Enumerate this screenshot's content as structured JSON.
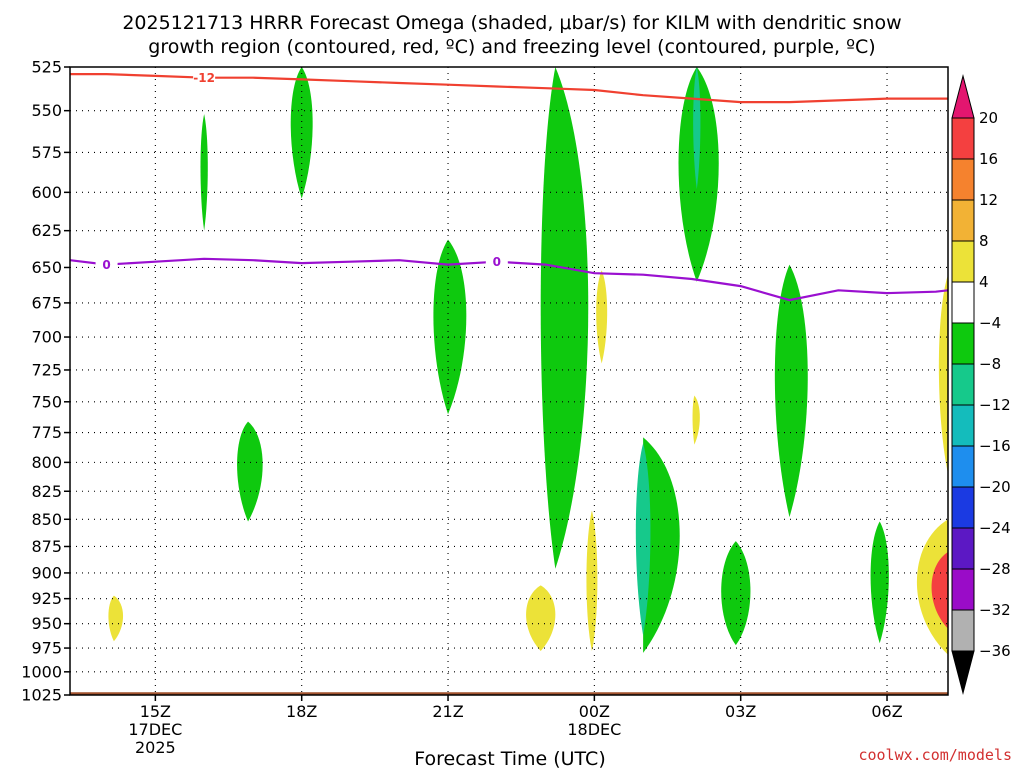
{
  "title": {
    "line1": "2025121713 HRRR Forecast Omega (shaded, μbar/s) for KILM with dendritic snow",
    "line2": "growth region (contoured, red, ºC) and freezing level (contoured, purple, ºC)"
  },
  "credit": "coolwx.com/models",
  "chart_data": {
    "type": "time-height cross-section",
    "title": "2025121713 HRRR Forecast Omega (shaded, μbar/s) for KILM with dendritic snow growth region (contoured, red, ºC) and freezing level (contoured, purple, ºC)",
    "xlabel": "Forecast Time (UTC)",
    "ylabel": "Pressure (hPa)",
    "x_range_hours_utc": [
      13.25,
      31.25
    ],
    "y_range_hpa": [
      1025,
      525
    ],
    "y_ticks": [
      525,
      550,
      575,
      600,
      625,
      650,
      675,
      700,
      725,
      750,
      775,
      800,
      825,
      850,
      875,
      900,
      925,
      950,
      975,
      1000,
      1025
    ],
    "x_ticks": [
      {
        "hour": 15,
        "label": "15Z",
        "date": "17DEC",
        "year": "2025"
      },
      {
        "hour": 18,
        "label": "18Z"
      },
      {
        "hour": 21,
        "label": "21Z"
      },
      {
        "hour": 24,
        "label": "00Z",
        "date": "18DEC"
      },
      {
        "hour": 27,
        "label": "03Z"
      },
      {
        "hour": 30,
        "label": "06Z"
      }
    ],
    "grid": true,
    "colorbar": {
      "levels": [
        20,
        16,
        12,
        8,
        4,
        -4,
        -8,
        -12,
        -16,
        -20,
        -24,
        -28,
        -32,
        -36
      ],
      "label_values": [
        "20",
        "16",
        "12",
        "8",
        "4",
        "−4",
        "−8",
        "−12",
        "−16",
        "−20",
        "−24",
        "−28",
        "−32",
        "−36"
      ],
      "bin_colors": [
        "#f44040",
        "#f5822e",
        "#f2b235",
        "#ece238",
        "#ffffff",
        "#0ec90e",
        "#16c98b",
        "#14bcbc",
        "#1e8eee",
        "#1b3ae2",
        "#5c18c4",
        "#9a0cc8",
        "#b1b1b1"
      ],
      "over_color": "#e3166f",
      "under_color": "#000000"
    },
    "snow_growth_contour": {
      "value": -12,
      "label": "-12",
      "color": "#f04030",
      "points": [
        [
          13.25,
          529
        ],
        [
          14,
          529
        ],
        [
          15,
          530
        ],
        [
          16,
          531
        ],
        [
          17,
          531
        ],
        [
          18,
          532
        ],
        [
          19,
          533
        ],
        [
          20,
          534
        ],
        [
          21,
          535
        ],
        [
          22,
          536
        ],
        [
          23,
          537
        ],
        [
          24,
          538
        ],
        [
          25,
          541
        ],
        [
          26,
          543
        ],
        [
          27,
          545
        ],
        [
          28,
          545
        ],
        [
          29,
          544
        ],
        [
          30,
          543
        ],
        [
          31,
          543
        ],
        [
          31.25,
          543
        ]
      ]
    },
    "freezing_level_contour": {
      "value": 0,
      "label": "0",
      "color": "#9a10d0",
      "points": [
        [
          13.25,
          645
        ],
        [
          14,
          648
        ],
        [
          15,
          646
        ],
        [
          16,
          644
        ],
        [
          17,
          645
        ],
        [
          18,
          647
        ],
        [
          19,
          646
        ],
        [
          20,
          645
        ],
        [
          21,
          648
        ],
        [
          22,
          646
        ],
        [
          23,
          648
        ],
        [
          24,
          654
        ],
        [
          25,
          655
        ],
        [
          26,
          658
        ],
        [
          27,
          663
        ],
        [
          28,
          673
        ],
        [
          29,
          666
        ],
        [
          30,
          668
        ],
        [
          31,
          667
        ],
        [
          31.25,
          666
        ]
      ]
    },
    "omega_features": [
      {
        "name": "ascent-cell-1",
        "level": -4,
        "hours": [
          15.9,
          16.1
        ],
        "pressure_hpa": [
          552,
          625
        ],
        "center": [
          16.0,
          590
        ]
      },
      {
        "name": "ascent-cell-2",
        "level": -4,
        "hours": [
          17.7,
          18.3
        ],
        "pressure_hpa": [
          525,
          604
        ],
        "center": [
          18.0,
          560
        ]
      },
      {
        "name": "ascent-cell-3",
        "level": -4,
        "hours": [
          16.6,
          17.3
        ],
        "pressure_hpa": [
          766,
          852
        ],
        "center": [
          16.9,
          805
        ]
      },
      {
        "name": "ascent-cell-4",
        "level": -4,
        "hours": [
          20.6,
          21.5
        ],
        "pressure_hpa": [
          631,
          760
        ],
        "center": [
          21.0,
          690
        ]
      },
      {
        "name": "ascent-band-main",
        "level": -4,
        "hours": [
          22.8,
          24.1
        ],
        "pressure_hpa": [
          525,
          896
        ],
        "center": [
          23.2,
          720
        ]
      },
      {
        "name": "ascent-band-upper",
        "level": -4,
        "hours": [
          25.6,
          26.7
        ],
        "pressure_hpa": [
          525,
          660
        ],
        "center": [
          26.1,
          590
        ]
      },
      {
        "name": "ascent-band-upper-core",
        "level": -8,
        "hours": [
          26.0,
          26.2
        ],
        "pressure_hpa": [
          525,
          598
        ],
        "center": [
          26.1,
          562
        ]
      },
      {
        "name": "ascent-cell-5",
        "level": -4,
        "hours": [
          25.0,
          26.0
        ],
        "pressure_hpa": [
          779,
          980
        ],
        "center": [
          25.0,
          880
        ]
      },
      {
        "name": "ascent-cell-5-core",
        "level": -8,
        "hours": [
          24.8,
          25.2
        ],
        "pressure_hpa": [
          784,
          962
        ],
        "center": [
          25.0,
          875
        ]
      },
      {
        "name": "ascent-cell-6",
        "level": -4,
        "hours": [
          27.6,
          28.5
        ],
        "pressure_hpa": [
          648,
          848
        ],
        "center": [
          28.0,
          740
        ]
      },
      {
        "name": "ascent-cell-7",
        "level": -4,
        "hours": [
          26.5,
          27.3
        ],
        "pressure_hpa": [
          870,
          972
        ],
        "center": [
          26.9,
          930
        ]
      },
      {
        "name": "ascent-cell-8",
        "level": -4,
        "hours": [
          29.6,
          30.1
        ],
        "pressure_hpa": [
          852,
          970
        ],
        "center": [
          29.85,
          910
        ]
      },
      {
        "name": "descent-cell-1",
        "level": 4,
        "hours": [
          14.0,
          14.4
        ],
        "pressure_hpa": [
          922,
          968
        ],
        "center": [
          14.15,
          945
        ]
      },
      {
        "name": "descent-cell-2",
        "level": 4,
        "hours": [
          22.5,
          23.3
        ],
        "pressure_hpa": [
          912,
          978
        ],
        "center": [
          22.9,
          945
        ]
      },
      {
        "name": "descent-cell-3",
        "level": 4,
        "hours": [
          24.0,
          24.3
        ],
        "pressure_hpa": [
          652,
          720
        ],
        "center": [
          24.15,
          686
        ]
      },
      {
        "name": "descent-cell-4",
        "level": 4,
        "hours": [
          23.8,
          24.1
        ],
        "pressure_hpa": [
          842,
          978
        ],
        "center": [
          23.95,
          925
        ]
      },
      {
        "name": "descent-cell-5",
        "level": 4,
        "hours": [
          26.0,
          26.2
        ],
        "pressure_hpa": [
          745,
          785
        ],
        "center": [
          26.05,
          765
        ]
      },
      {
        "name": "descent-cell-6",
        "level": 4,
        "hours": [
          31.0,
          31.25
        ],
        "pressure_hpa": [
          655,
          810
        ],
        "center": [
          31.25,
          735
        ]
      },
      {
        "name": "descent-cell-7",
        "level": 4,
        "hours": [
          30.4,
          31.25
        ],
        "pressure_hpa": [
          850,
          982
        ],
        "center": [
          31.25,
          920
        ]
      },
      {
        "name": "descent-cell-7-core",
        "level": 16,
        "hours": [
          30.8,
          31.25
        ],
        "pressure_hpa": [
          880,
          955
        ],
        "center": [
          31.25,
          920
        ]
      }
    ],
    "terrain": {
      "color": "#a0522d",
      "pressure_hpa": 1022
    }
  }
}
